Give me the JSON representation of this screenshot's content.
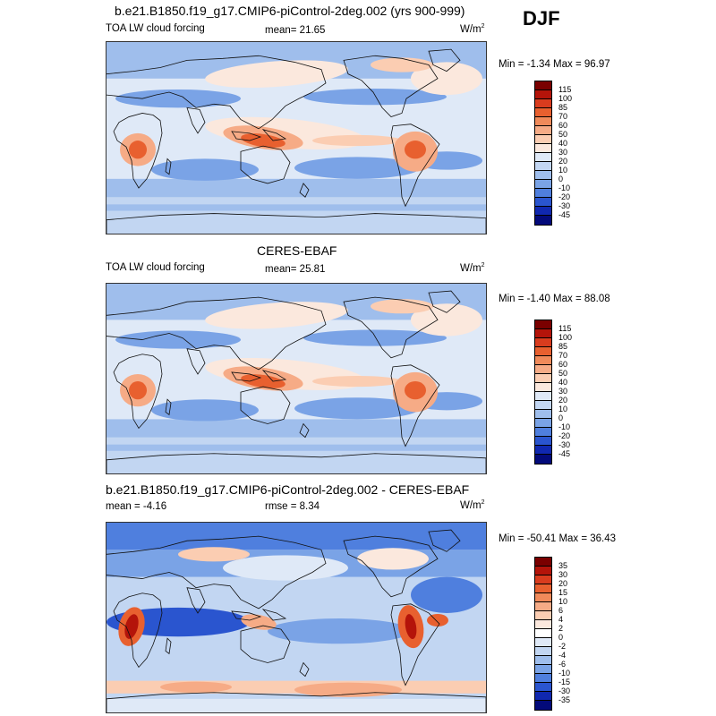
{
  "season": "DJF",
  "panels": [
    {
      "title": "b.e21.B1850.f19_g17.CMIP6-piControl-2deg.002 (yrs 900-999)",
      "left_label": "TOA LW cloud forcing",
      "center_label": "mean=  21.65",
      "units": "W/m",
      "units_sup": "2",
      "minmax": "Min =  -1.34 Max =  96.97",
      "colorbar_labels": [
        "115",
        "100",
        "85",
        "70",
        "60",
        "50",
        "40",
        "30",
        "20",
        "10",
        "0",
        "-10",
        "-20",
        "-30",
        "-45"
      ],
      "colorbar_colors": [
        "#7a0000",
        "#b4140a",
        "#d93c1e",
        "#e8602f",
        "#f08a5a",
        "#f6ab86",
        "#fbcdb2",
        "#fbe8dd",
        "#dfe9f7",
        "#c2d6f2",
        "#9fbeec",
        "#7aa3e6",
        "#4f7fde",
        "#2a55cf",
        "#1028b0",
        "#030a7a"
      ],
      "map_type": "model"
    },
    {
      "title": "CERES-EBAF",
      "left_label": "TOA LW cloud forcing",
      "center_label": "mean=  25.81",
      "units": "W/m",
      "units_sup": "2",
      "minmax": "Min =  -1.40 Max =  88.08",
      "colorbar_labels": [
        "115",
        "100",
        "85",
        "70",
        "60",
        "50",
        "40",
        "30",
        "20",
        "10",
        "0",
        "-10",
        "-20",
        "-30",
        "-45"
      ],
      "colorbar_colors": [
        "#7a0000",
        "#b4140a",
        "#d93c1e",
        "#e8602f",
        "#f08a5a",
        "#f6ab86",
        "#fbcdb2",
        "#fbe8dd",
        "#dfe9f7",
        "#c2d6f2",
        "#9fbeec",
        "#7aa3e6",
        "#4f7fde",
        "#2a55cf",
        "#1028b0",
        "#030a7a"
      ],
      "map_type": "obs"
    },
    {
      "title": "b.e21.B1850.f19_g17.CMIP6-piControl-2deg.002 - CERES-EBAF",
      "left_label": "mean =  -4.16",
      "center_label": "rmse =   8.34",
      "units": "W/m",
      "units_sup": "2",
      "minmax": "Min = -50.41 Max =  36.43",
      "colorbar_labels": [
        "35",
        "30",
        "20",
        "15",
        "10",
        "6",
        "4",
        "2",
        "0",
        "-2",
        "-4",
        "-6",
        "-10",
        "-15",
        "-30",
        "-35"
      ],
      "colorbar_colors": [
        "#7a0000",
        "#b4140a",
        "#d93c1e",
        "#e8602f",
        "#f08a5a",
        "#f6ab86",
        "#fbcdb2",
        "#fbe8dd",
        "#ffffff",
        "#dfe9f7",
        "#c2d6f2",
        "#9fbeec",
        "#7aa3e6",
        "#4f7fde",
        "#2a55cf",
        "#1028b0",
        "#030a7a"
      ],
      "map_type": "diff"
    }
  ]
}
